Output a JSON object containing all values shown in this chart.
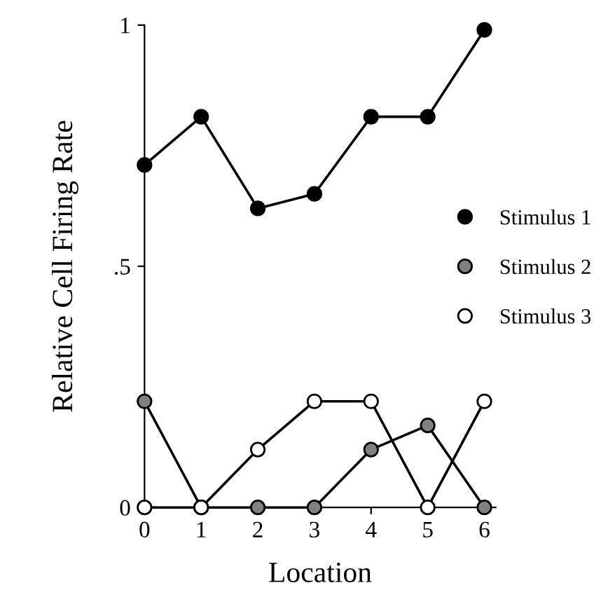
{
  "chart_data": {
    "type": "line",
    "xlabel": "Location",
    "ylabel": "Relative Cell Firing Rate",
    "x": [
      0,
      1,
      2,
      3,
      4,
      5,
      6
    ],
    "series": [
      {
        "name": "Stimulus 1",
        "color": "#000000",
        "colors": [
          "#000000",
          "#000000",
          "#000000",
          "#000000",
          "#000000",
          "#000000",
          "#000000"
        ],
        "values": [
          0.71,
          0.81,
          0.62,
          0.65,
          0.81,
          0.81,
          0.99
        ]
      },
      {
        "name": "Stimulus 2",
        "color": "#000000",
        "colors": [
          "#808080",
          "#808080",
          "#808080",
          "#808080",
          "#808080",
          "#808080",
          "#808080"
        ],
        "values": [
          0.22,
          0,
          0,
          0,
          0.12,
          0.17,
          0
        ]
      },
      {
        "name": "Stimulus 3",
        "color": "#000000",
        "colors": [
          "#ffffff",
          "#ffffff",
          "#ffffff",
          "#ffffff",
          "#ffffff",
          "#ffffff",
          "#ffffff"
        ],
        "values": [
          0,
          0,
          0.12,
          0.22,
          0.22,
          0,
          0.22
        ]
      }
    ],
    "xlim": [
      0,
      6.2
    ],
    "ylim": [
      0,
      1
    ],
    "xticks": [
      0,
      1,
      2,
      3,
      4,
      5,
      6
    ],
    "yticks": [
      0,
      {
        "value": 0.5,
        "label": ".5"
      },
      1
    ],
    "marker": "circle",
    "line_style": "solid",
    "grid": false,
    "legend": "right"
  }
}
